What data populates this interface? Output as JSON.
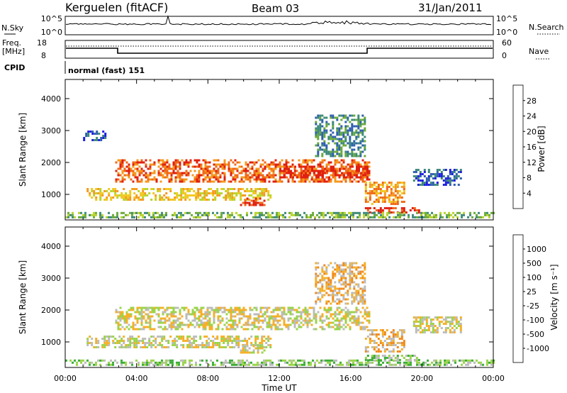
{
  "header": {
    "station": "Kerguelen (fitACF)",
    "beam": "Beam 03",
    "date": "31/Jan/2011"
  },
  "strip_nsky": {
    "left_label": "N.Sky",
    "left_ticks": [
      "10^5",
      "10^0"
    ],
    "right_label": "N.Search",
    "right_ticks": [
      "10^5",
      "10^0"
    ]
  },
  "strip_freq": {
    "left_label_line1": "Freq.",
    "left_label_line2": "[MHz]",
    "left_ticks": [
      "18",
      "8"
    ],
    "right_label": "Nave",
    "right_ticks": [
      "60",
      "0"
    ],
    "cpid_label": "CPID",
    "cpid_value": "normal (fast) 151"
  },
  "colors": {
    "power": [
      "#1f1fe0",
      "#2f5fb0",
      "#3d8a7a",
      "#6aaa3a",
      "#b8d42a",
      "#f0c81e",
      "#f59a1e",
      "#f06818",
      "#e02010"
    ],
    "velocity": [
      "#e01818",
      "#f05c14",
      "#f08a1c",
      "#f5b028",
      "#bcbcbc",
      "#9ad44a",
      "#3cae38",
      "#3a7aa8",
      "#2030c8"
    ]
  },
  "chart_data": [
    {
      "type": "heatmap",
      "name": "power",
      "xlabel": "",
      "ylabel": "Slant Range [km]",
      "xlim": [
        0,
        24
      ],
      "ylim": [
        200,
        4600
      ],
      "yticks": [
        "1000",
        "2000",
        "3000",
        "4000"
      ],
      "colorbar_label": "Power [dB]",
      "colorbar_ticks": [
        "4",
        "8",
        "12",
        "16",
        "20",
        "24",
        "28"
      ],
      "echo_bands": [
        {
          "t0": 2.8,
          "t1": 17.0,
          "r0": 1400,
          "r1": 2100,
          "level": 7
        },
        {
          "t0": 12.0,
          "t1": 17.0,
          "r0": 1500,
          "r1": 1900,
          "level": 8
        },
        {
          "t0": 1.2,
          "t1": 11.5,
          "r0": 850,
          "r1": 1200,
          "level": 5
        },
        {
          "t0": 9.8,
          "t1": 11.2,
          "r0": 650,
          "r1": 900,
          "level": 8
        },
        {
          "t0": 16.8,
          "t1": 19.8,
          "r0": 400,
          "r1": 600,
          "level": 8
        },
        {
          "t0": 16.8,
          "t1": 19.0,
          "r0": 700,
          "r1": 1400,
          "level": 6
        },
        {
          "t0": 14.0,
          "t1": 16.8,
          "r0": 2200,
          "r1": 3500,
          "level": 2
        },
        {
          "t0": 1.0,
          "t1": 2.2,
          "r0": 2700,
          "r1": 3000,
          "level": 1
        },
        {
          "t0": 19.5,
          "t1": 22.2,
          "r0": 1300,
          "r1": 1800,
          "level": 1
        },
        {
          "t0": 0.0,
          "t1": 24.0,
          "r0": 250,
          "r1": 450,
          "level": 3
        }
      ]
    },
    {
      "type": "heatmap",
      "name": "velocity",
      "xlabel": "Time UT",
      "ylabel": "Slant Range [km]",
      "xlim": [
        0,
        24
      ],
      "ylim": [
        200,
        4600
      ],
      "xticks": [
        "00:00",
        "04:00",
        "08:00",
        "12:00",
        "16:00",
        "20:00",
        "00:00"
      ],
      "yticks": [
        "1000",
        "2000",
        "3000",
        "4000"
      ],
      "colorbar_label": "Velocity [m s⁻¹]",
      "colorbar_ticks": [
        "-1000",
        "-500",
        "-100",
        "-25",
        "25",
        "100",
        "500",
        "1000"
      ],
      "echo_bands": [
        {
          "t0": 2.8,
          "t1": 17.0,
          "r0": 1400,
          "r1": 2100,
          "level": 4
        },
        {
          "t0": 1.2,
          "t1": 11.5,
          "r0": 850,
          "r1": 1200,
          "level": 4
        },
        {
          "t0": 9.8,
          "t1": 11.2,
          "r0": 650,
          "r1": 900,
          "level": 4
        },
        {
          "t0": 16.8,
          "t1": 19.8,
          "r0": 400,
          "r1": 600,
          "level": 5
        },
        {
          "t0": 16.8,
          "t1": 19.0,
          "r0": 700,
          "r1": 1400,
          "level": 3
        },
        {
          "t0": 14.0,
          "t1": 16.8,
          "r0": 2200,
          "r1": 3500,
          "level": 3
        },
        {
          "t0": 19.5,
          "t1": 22.2,
          "r0": 1300,
          "r1": 1800,
          "level": 4
        },
        {
          "t0": 0.0,
          "t1": 24.0,
          "r0": 250,
          "r1": 450,
          "level": 5
        }
      ]
    }
  ]
}
